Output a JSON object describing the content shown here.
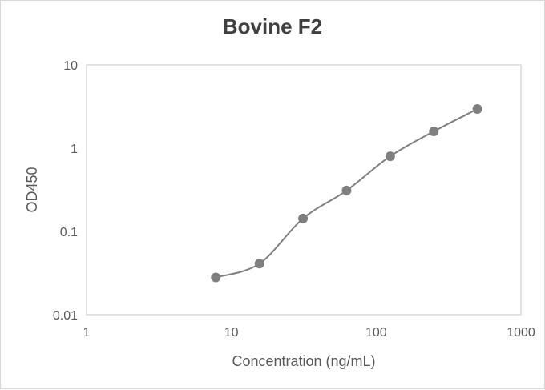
{
  "chart_data": {
    "type": "line",
    "title": "Bovine F2",
    "xlabel": "Concentration (ng/mL)",
    "ylabel": "OD450",
    "xscale": "log",
    "yscale": "log",
    "xlim": [
      1,
      1000
    ],
    "ylim": [
      0.01,
      10
    ],
    "xticks": [
      "1",
      "10",
      "100",
      "1000"
    ],
    "yticks": [
      "10",
      "1",
      "0.1",
      "0.01"
    ],
    "grid": false,
    "legend": null,
    "series": [
      {
        "name": "Bovine F2",
        "color": "#7f7f7f",
        "marker": "circle",
        "smooth": true,
        "x": [
          7.81,
          15.63,
          31.25,
          62.5,
          125,
          250,
          500
        ],
        "y": [
          0.028,
          0.041,
          0.143,
          0.31,
          0.8,
          1.59,
          2.96
        ]
      }
    ]
  },
  "colors": {
    "series": "#7f7f7f",
    "axis": "#d9d9d9",
    "text": "#595959",
    "title": "#404040"
  }
}
